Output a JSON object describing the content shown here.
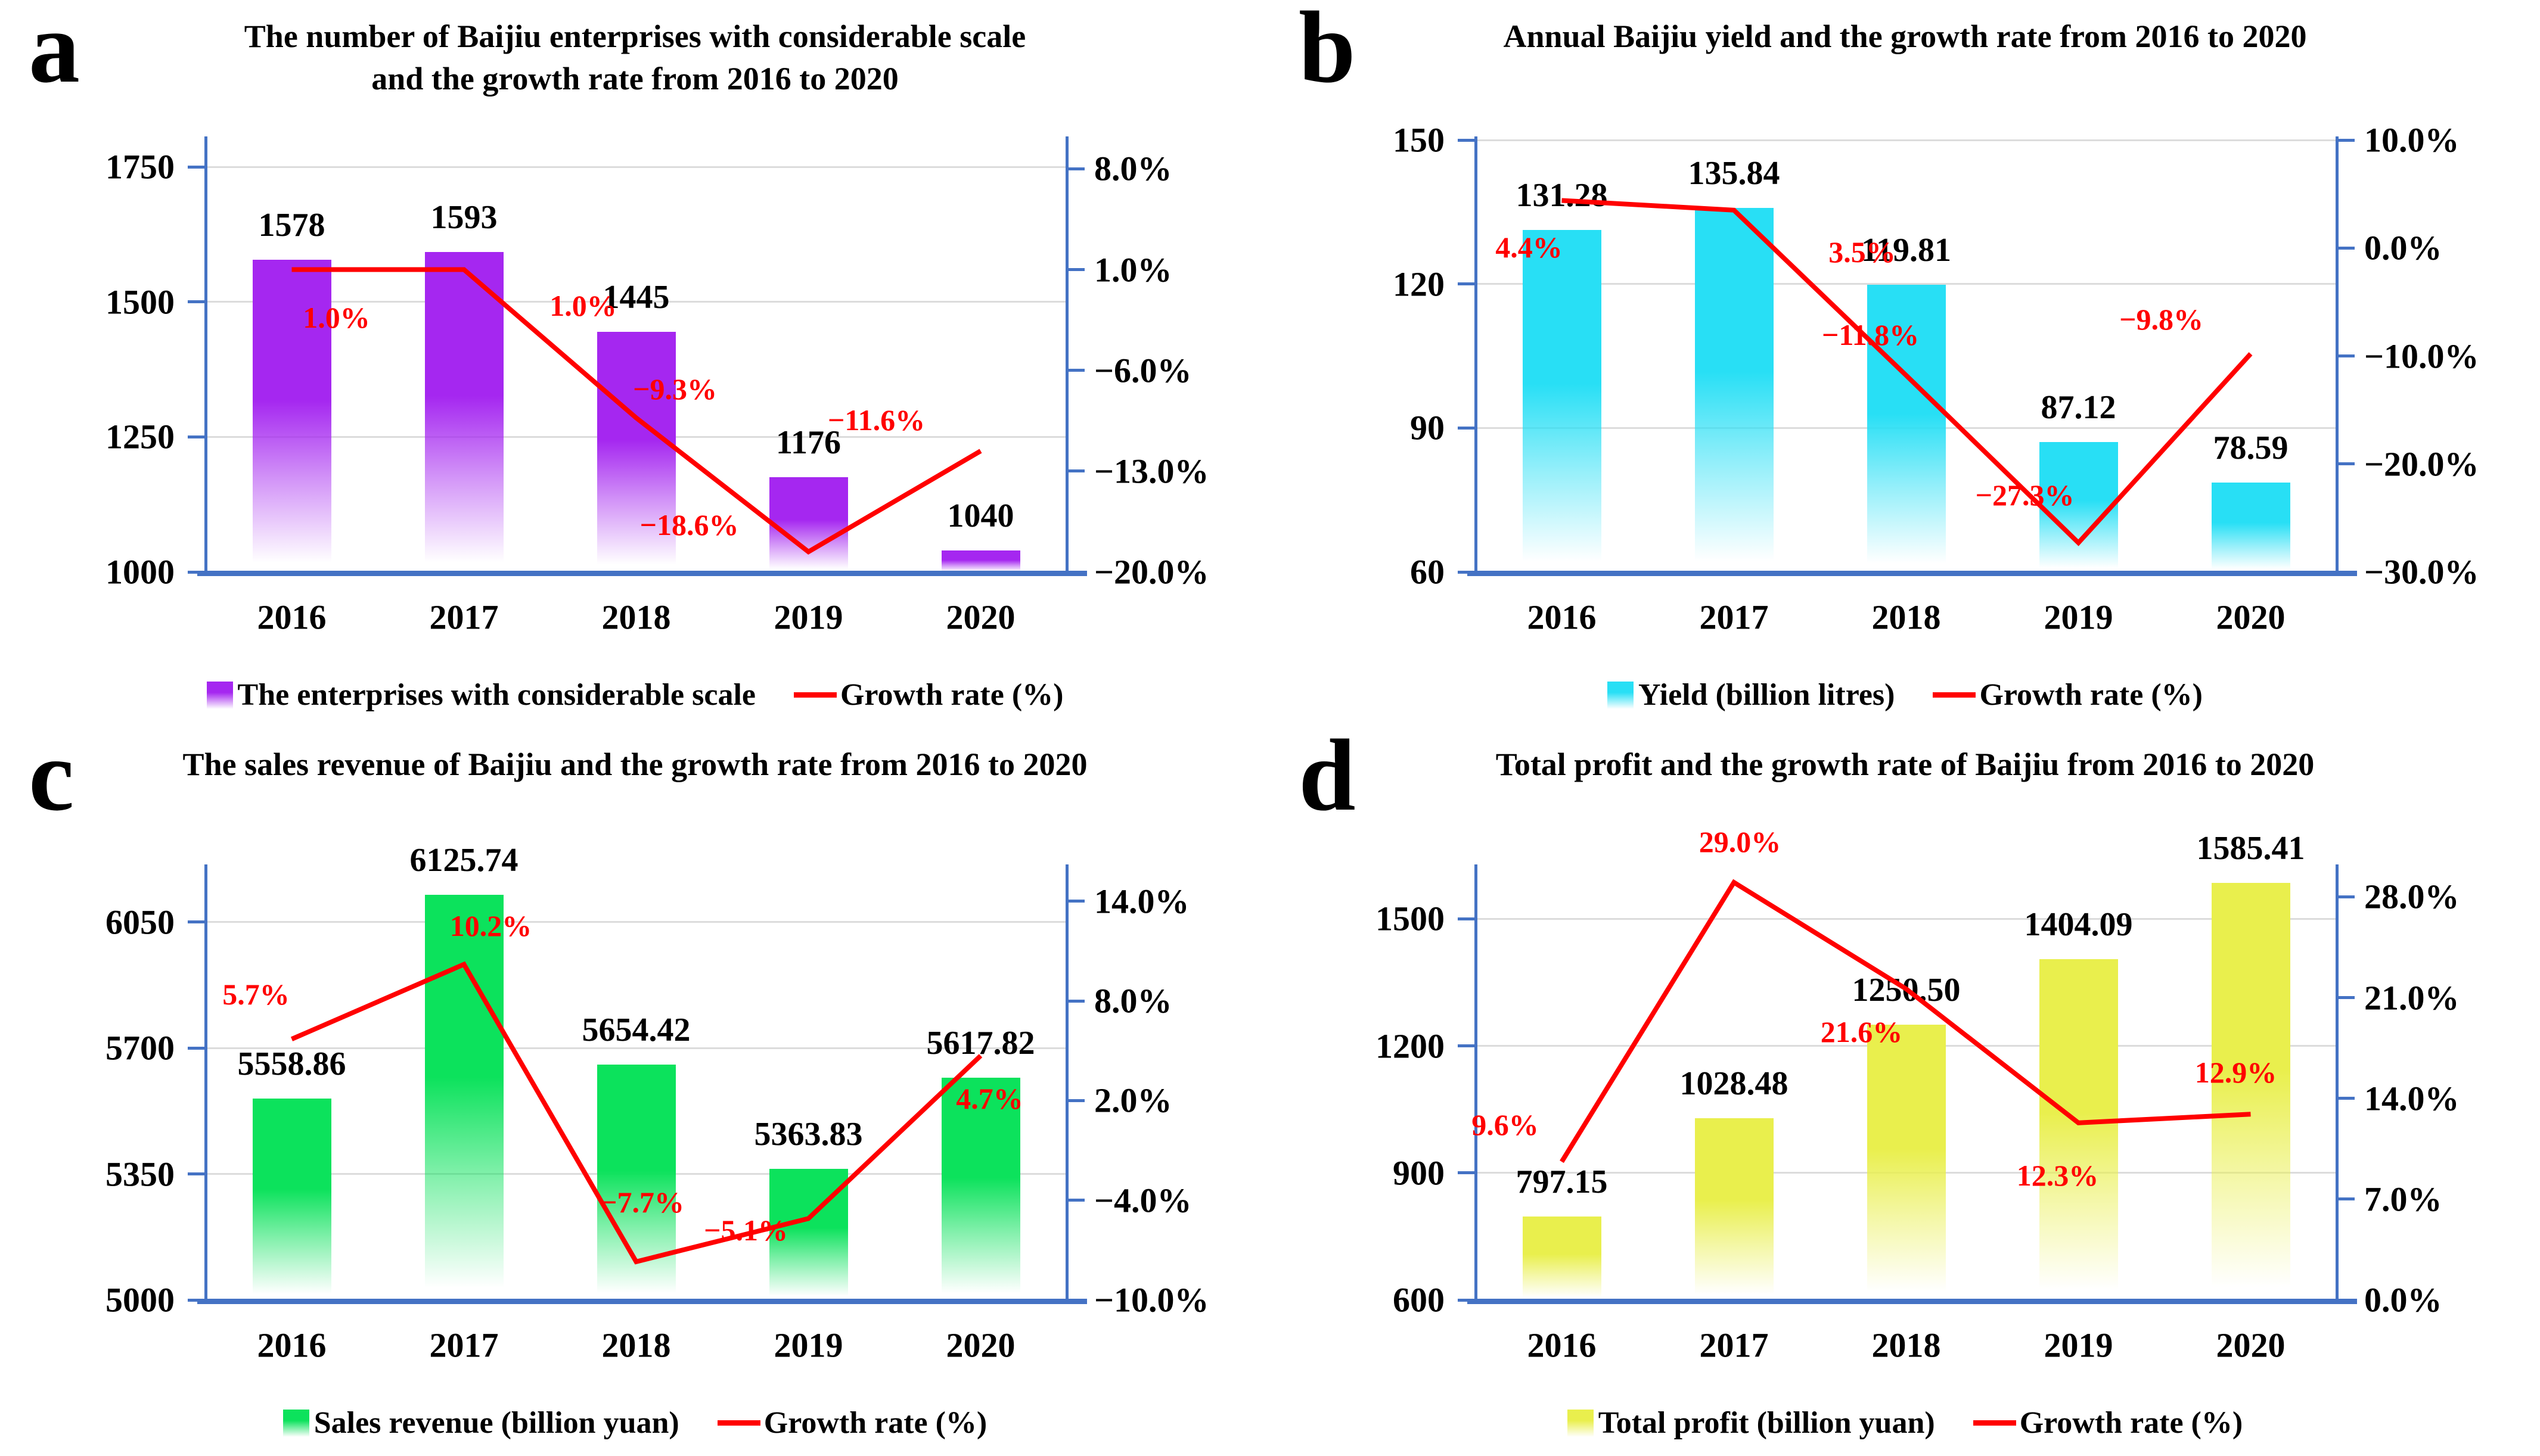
{
  "figure": {
    "background": "#ffffff",
    "axis_color": "#4472c4",
    "grid_color": "#dcdcdc",
    "label_color": "#000000",
    "growth_label_color": "#ff0000"
  },
  "chart_data": [
    {
      "panel_letter": "a",
      "type": "bar",
      "title": "The number of Baijiu enterprises with considerable scale and the growth rate from 2016 to 2020",
      "categories": [
        "2016",
        "2017",
        "2018",
        "2019",
        "2020"
      ],
      "bar_series": {
        "name": "The enterprises with considerable scale",
        "color": "#a527f0",
        "values": [
          1578,
          1593,
          1445,
          1176,
          1040
        ],
        "labels": [
          "1578",
          "1593",
          "1445",
          "1176",
          "1040"
        ]
      },
      "line_series": {
        "name": "Growth rate (%)",
        "color": "#ff0000",
        "values": [
          1.0,
          1.0,
          -9.3,
          -18.6,
          -11.6
        ],
        "labels": [
          "1.0%",
          "1.0%",
          "−9.3%",
          "−18.6%",
          "−11.6%"
        ]
      },
      "left_axis": {
        "min": 1000,
        "max": 1800,
        "ticks": [
          {
            "v": 1750,
            "label": "1750"
          },
          {
            "v": 1500,
            "label": "1500"
          },
          {
            "v": 1250,
            "label": "1250"
          },
          {
            "v": 1000,
            "label": "1000"
          }
        ]
      },
      "right_axis": {
        "min": -20,
        "max": 10,
        "ticks": [
          {
            "v": 8,
            "label": "8.0%"
          },
          {
            "v": 1,
            "label": "1.0%"
          },
          {
            "v": -6,
            "label": "−6.0%"
          },
          {
            "v": -13,
            "label": "−13.0%"
          },
          {
            "v": -20,
            "label": "−20.0%"
          }
        ]
      },
      "grid": true,
      "legend_position": "bottom"
    },
    {
      "panel_letter": "b",
      "type": "bar",
      "title": "Annual Baijiu yield and the growth rate from 2016 to 2020",
      "categories": [
        "2016",
        "2017",
        "2018",
        "2019",
        "2020"
      ],
      "bar_series": {
        "name": "Yield (billion litres)",
        "color": "#28dff5",
        "values": [
          131.28,
          135.84,
          119.81,
          87.12,
          78.59
        ],
        "labels": [
          "131.28",
          "135.84",
          "119.81",
          "87.12",
          "78.59"
        ]
      },
      "line_series": {
        "name": "Growth rate (%)",
        "color": "#ff0000",
        "values": [
          4.4,
          3.5,
          -11.8,
          -27.3,
          -9.8
        ],
        "labels": [
          "4.4%",
          "3.5%",
          "−11.8%",
          "−27.3%",
          "−9.8%"
        ]
      },
      "left_axis": {
        "min": 60,
        "max": 150,
        "ticks": [
          {
            "v": 150,
            "label": "150"
          },
          {
            "v": 120,
            "label": "120"
          },
          {
            "v": 90,
            "label": "90"
          },
          {
            "v": 60,
            "label": "60"
          }
        ]
      },
      "right_axis": {
        "min": -30,
        "max": 10,
        "ticks": [
          {
            "v": 10,
            "label": "10.0%"
          },
          {
            "v": 0,
            "label": "0.0%"
          },
          {
            "v": -10,
            "label": "−10.0%"
          },
          {
            "v": -20,
            "label": "−20.0%"
          },
          {
            "v": -30,
            "label": "−30.0%"
          }
        ]
      },
      "grid": true,
      "legend_position": "bottom"
    },
    {
      "panel_letter": "c",
      "type": "bar",
      "title": "The sales revenue of Baijiu and the growth rate from 2016 to 2020",
      "categories": [
        "2016",
        "2017",
        "2018",
        "2019",
        "2020"
      ],
      "bar_series": {
        "name": "Sales revenue (billion yuan)",
        "color": "#0ce25c",
        "values": [
          5558.86,
          6125.74,
          5654.42,
          5363.83,
          5617.82
        ],
        "labels": [
          "5558.86",
          "6125.74",
          "5654.42",
          "5363.83",
          "5617.82"
        ]
      },
      "line_series": {
        "name": "Growth rate (%)",
        "color": "#ff0000",
        "values": [
          5.7,
          10.2,
          -7.7,
          -5.1,
          4.7
        ],
        "labels": [
          "5.7%",
          "10.2%",
          "−7.7%",
          "−5.1%",
          "4.7%"
        ]
      },
      "left_axis": {
        "min": 5000,
        "max": 6200,
        "ticks": [
          {
            "v": 6050,
            "label": "6050"
          },
          {
            "v": 5700,
            "label": "5700"
          },
          {
            "v": 5350,
            "label": "5350"
          },
          {
            "v": 5000,
            "label": "5000"
          }
        ]
      },
      "right_axis": {
        "min": -10,
        "max": 16,
        "ticks": [
          {
            "v": 14,
            "label": "14.0%"
          },
          {
            "v": 8,
            "label": "8.0%"
          },
          {
            "v": 2,
            "label": "2.0%"
          },
          {
            "v": -4,
            "label": "−4.0%"
          },
          {
            "v": -10,
            "label": "−10.0%"
          }
        ]
      },
      "grid": true,
      "legend_position": "bottom"
    },
    {
      "panel_letter": "d",
      "type": "bar",
      "title": "Total profit and the growth rate of Baijiu from 2016 to 2020",
      "categories": [
        "2016",
        "2017",
        "2018",
        "2019",
        "2020"
      ],
      "bar_series": {
        "name": "Total profit (billion yuan)",
        "color": "#e9ef4d",
        "values": [
          797.15,
          1028.48,
          1250.5,
          1404.09,
          1585.41
        ],
        "labels": [
          "797.15",
          "1028.48",
          "1250.50",
          "1404.09",
          "1585.41"
        ]
      },
      "line_series": {
        "name": "Growth rate (%)",
        "color": "#ff0000",
        "values": [
          9.6,
          29.0,
          21.6,
          12.3,
          12.9
        ],
        "labels": [
          "9.6%",
          "29.0%",
          "21.6%",
          "12.3%",
          "12.9%"
        ]
      },
      "left_axis": {
        "min": 600,
        "max": 1620,
        "ticks": [
          {
            "v": 1500,
            "label": "1500"
          },
          {
            "v": 1200,
            "label": "1200"
          },
          {
            "v": 900,
            "label": "900"
          },
          {
            "v": 600,
            "label": "600"
          }
        ]
      },
      "right_axis": {
        "min": 0,
        "max": 30,
        "ticks": [
          {
            "v": 28,
            "label": "28.0%"
          },
          {
            "v": 21,
            "label": "21.0%"
          },
          {
            "v": 14,
            "label": "14.0%"
          },
          {
            "v": 7,
            "label": "7.0%"
          },
          {
            "v": 0,
            "label": "0.0%"
          }
        ]
      },
      "grid": true,
      "legend_position": "bottom"
    }
  ]
}
